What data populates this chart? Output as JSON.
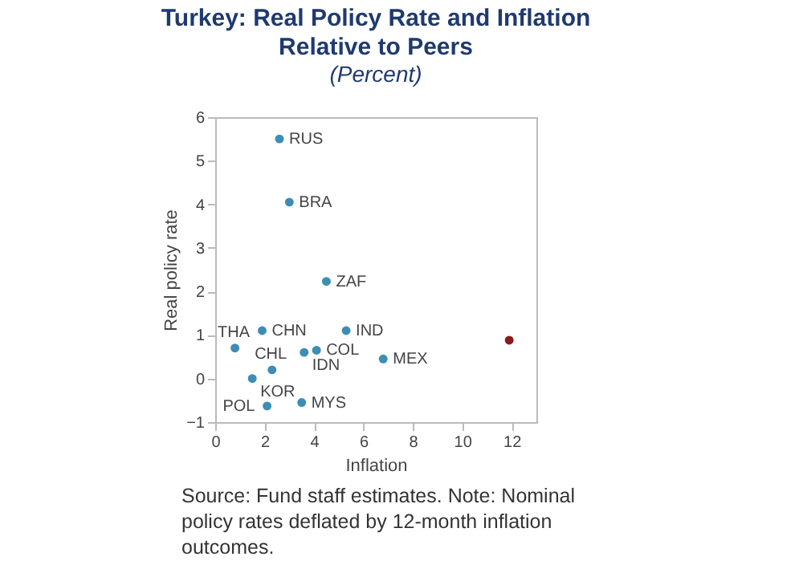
{
  "chart_data": {
    "type": "scatter",
    "title": "Turkey: Real Policy Rate and Inflation Relative to Peers",
    "subtitle": "(Percent)",
    "xlabel": "Inflation",
    "ylabel": "Real policy rate",
    "series": [
      {
        "color": "#3d8db5",
        "x": [
          2.6,
          3.0,
          4.5,
          1.9,
          5.3,
          0.8,
          3.6,
          4.1,
          6.8,
          2.3,
          1.5,
          2.1,
          3.5
        ],
        "values": [
          5.5,
          4.05,
          2.23,
          1.1,
          1.1,
          0.7,
          0.6,
          0.65,
          0.45,
          0.2,
          0.0,
          -0.63,
          -0.55
        ]
      },
      {
        "color": "#8b1a1a",
        "x": [
          11.9
        ],
        "values": [
          0.88
        ]
      }
    ],
    "annotations": [
      {
        "text": "RUS",
        "x": 2.6,
        "y": 5.5
      },
      {
        "text": "BRA",
        "x": 3.0,
        "y": 4.05
      },
      {
        "text": "ZAF",
        "x": 4.5,
        "y": 2.23
      },
      {
        "text": "CHN",
        "x": 1.9,
        "y": 1.1
      },
      {
        "text": "IND",
        "x": 5.3,
        "y": 1.1
      },
      {
        "text": "THA",
        "x": 0.8,
        "y": 0.7
      },
      {
        "text": "IDN",
        "x": 3.6,
        "y": 0.6
      },
      {
        "text": "COL",
        "x": 4.1,
        "y": 0.65
      },
      {
        "text": "MEX",
        "x": 6.8,
        "y": 0.45
      },
      {
        "text": "CHL",
        "x": 2.3,
        "y": 0.2
      },
      {
        "text": "KOR",
        "x": 1.5,
        "y": 0.0
      },
      {
        "text": "POL",
        "x": 2.1,
        "y": -0.63
      },
      {
        "text": "MYS",
        "x": 3.5,
        "y": -0.55
      },
      "Source: Fund staff estimates. Note: Nominal policy rates deflated by 12-month inflation outcomes."
    ],
    "xlim": [
      0,
      13
    ],
    "xticks": [
      0,
      2,
      4,
      6,
      8,
      10,
      12
    ],
    "ylim": [
      -1,
      6
    ],
    "yticks": [
      -1,
      0,
      1,
      2,
      3,
      4,
      5,
      6
    ],
    "grid": false,
    "legend": false,
    "marker": "circle"
  }
}
